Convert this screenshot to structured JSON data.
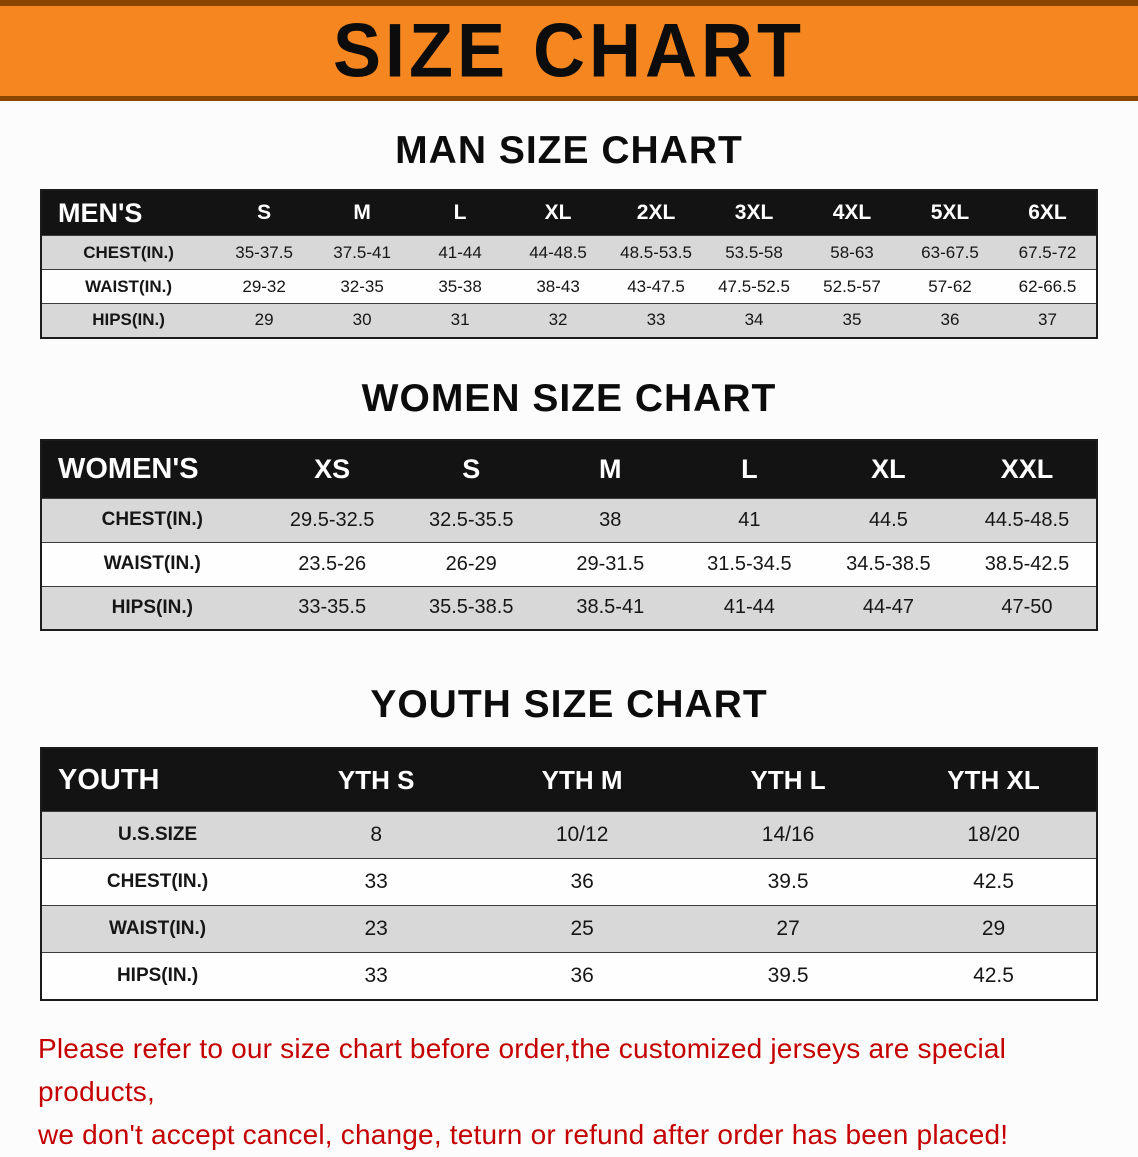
{
  "banner": {
    "title": "SIZE CHART"
  },
  "colors": {
    "banner_bg": "#f6861f",
    "banner_edge": "#8a4500",
    "header_bg": "#131313",
    "stripe": "#d8d8d8",
    "note_red": "#c40000"
  },
  "sections": [
    {
      "heading": "MAN SIZE CHART",
      "table": {
        "header": [
          "MEN'S",
          "S",
          "M",
          "L",
          "XL",
          "2XL",
          "3XL",
          "4XL",
          "5XL",
          "6XL"
        ],
        "rows": [
          [
            "CHEST(IN.)",
            "35-37.5",
            "37.5-41",
            "41-44",
            "44-48.5",
            "48.5-53.5",
            "53.5-58",
            "58-63",
            "63-67.5",
            "67.5-72"
          ],
          [
            "WAIST(IN.)",
            "29-32",
            "32-35",
            "35-38",
            "38-43",
            "43-47.5",
            "47.5-52.5",
            "52.5-57",
            "57-62",
            "62-66.5"
          ],
          [
            "HIPS(IN.)",
            "29",
            "30",
            "31",
            "32",
            "33",
            "34",
            "35",
            "36",
            "37"
          ]
        ]
      }
    },
    {
      "heading": "WOMEN SIZE CHART",
      "table": {
        "header": [
          "WOMEN'S",
          "XS",
          "S",
          "M",
          "L",
          "XL",
          "XXL"
        ],
        "rows": [
          [
            "CHEST(IN.)",
            "29.5-32.5",
            "32.5-35.5",
            "38",
            "41",
            "44.5",
            "44.5-48.5"
          ],
          [
            "WAIST(IN.)",
            "23.5-26",
            "26-29",
            "29-31.5",
            "31.5-34.5",
            "34.5-38.5",
            "38.5-42.5"
          ],
          [
            "HIPS(IN.)",
            "33-35.5",
            "35.5-38.5",
            "38.5-41",
            "41-44",
            "44-47",
            "47-50"
          ]
        ]
      }
    },
    {
      "heading": "YOUTH SIZE CHART",
      "table": {
        "header": [
          "YOUTH",
          "YTH S",
          "YTH M",
          "YTH L",
          "YTH XL"
        ],
        "rows": [
          [
            "U.S.SIZE",
            "8",
            "10/12",
            "14/16",
            "18/20"
          ],
          [
            "CHEST(IN.)",
            "33",
            "36",
            "39.5",
            "42.5"
          ],
          [
            "WAIST(IN.)",
            "23",
            "25",
            "27",
            "29"
          ],
          [
            "HIPS(IN.)",
            "33",
            "36",
            "39.5",
            "42.5"
          ]
        ]
      }
    }
  ],
  "note": {
    "line1": "Please refer to our size chart before order,the customized jerseys are special products,",
    "line2": "we don't accept cancel, change, teturn or refund after order has been placed!"
  }
}
